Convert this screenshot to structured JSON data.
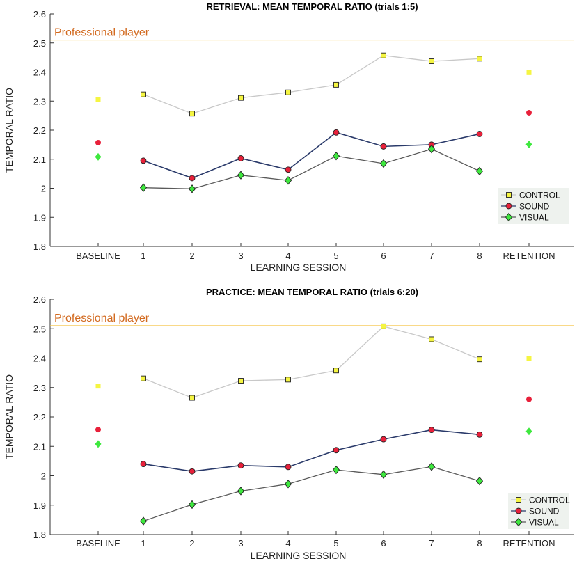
{
  "chart_data": [
    {
      "type": "line",
      "title": "RETRIEVAL: MEAN TEMPORAL RATIO (trials 1:5)",
      "xlabel": "LEARNING SESSION",
      "ylabel": "TEMPORAL RATIO",
      "ylim": [
        1.8,
        2.6
      ],
      "yticks": [
        1.8,
        1.9,
        2.0,
        2.1,
        2.2,
        2.3,
        2.4,
        2.5,
        2.6
      ],
      "ytick_labels": [
        "1.8",
        "1.9",
        "2",
        "2.1",
        "2.2",
        "2.3",
        "2.4",
        "2.5",
        "2.6"
      ],
      "categories": [
        "BASELINE",
        "1",
        "2",
        "3",
        "4",
        "5",
        "6",
        "7",
        "8",
        "RETENTION"
      ],
      "reference_line": {
        "label": "Professional player",
        "value": 2.51,
        "color": "#f5c242",
        "label_color": "#d2691e"
      },
      "legend_position": "bottom-right",
      "series": [
        {
          "name": "CONTROL",
          "marker": "square",
          "color": "#c8c8c8",
          "marker_fill": "#f5f542",
          "baseline": 2.305,
          "retention": 2.398,
          "sessions": [
            2.323,
            2.257,
            2.311,
            2.33,
            2.356,
            2.457,
            2.437,
            2.446
          ]
        },
        {
          "name": "SOUND",
          "marker": "circle",
          "color": "#2a3a6a",
          "marker_fill": "#e8203a",
          "baseline": 2.157,
          "retention": 2.26,
          "sessions": [
            2.095,
            2.035,
            2.103,
            2.064,
            2.192,
            2.144,
            2.15,
            2.187
          ]
        },
        {
          "name": "VISUAL",
          "marker": "diamond",
          "color": "#5a5a5a",
          "marker_fill": "#3ee83e",
          "baseline": 2.108,
          "retention": 2.151,
          "sessions": [
            2.002,
            1.998,
            2.045,
            2.027,
            2.111,
            2.085,
            2.135,
            2.059
          ]
        }
      ]
    },
    {
      "type": "line",
      "title": "PRACTICE: MEAN TEMPORAL RATIO (trials 6:20)",
      "xlabel": "LEARNING SESSION",
      "ylabel": "TEMPORAL RATIO",
      "ylim": [
        1.8,
        2.6
      ],
      "yticks": [
        1.8,
        1.9,
        2.0,
        2.1,
        2.2,
        2.3,
        2.4,
        2.5,
        2.6
      ],
      "ytick_labels": [
        "1.8",
        "1.9",
        "2",
        "2.1",
        "2.2",
        "2.3",
        "2.4",
        "2.5",
        "2.6"
      ],
      "categories": [
        "BASELINE",
        "1",
        "2",
        "3",
        "4",
        "5",
        "6",
        "7",
        "8",
        "RETENTION"
      ],
      "reference_line": {
        "label": "Professional player",
        "value": 2.51,
        "color": "#f5c242",
        "label_color": "#d2691e"
      },
      "legend_position": "bottom-right",
      "series": [
        {
          "name": "CONTROL",
          "marker": "square",
          "color": "#c8c8c8",
          "marker_fill": "#f5f542",
          "baseline": 2.305,
          "retention": 2.398,
          "sessions": [
            2.331,
            2.265,
            2.323,
            2.327,
            2.358,
            2.508,
            2.464,
            2.396
          ]
        },
        {
          "name": "SOUND",
          "marker": "circle",
          "color": "#2a3a6a",
          "marker_fill": "#e8203a",
          "baseline": 2.157,
          "retention": 2.26,
          "sessions": [
            2.04,
            2.015,
            2.035,
            2.03,
            2.087,
            2.124,
            2.156,
            2.14
          ]
        },
        {
          "name": "VISUAL",
          "marker": "diamond",
          "color": "#5a5a5a",
          "marker_fill": "#3ee83e",
          "baseline": 2.108,
          "retention": 2.151,
          "sessions": [
            1.846,
            1.902,
            1.948,
            1.972,
            2.02,
            2.004,
            2.031,
            1.982
          ]
        }
      ]
    }
  ]
}
